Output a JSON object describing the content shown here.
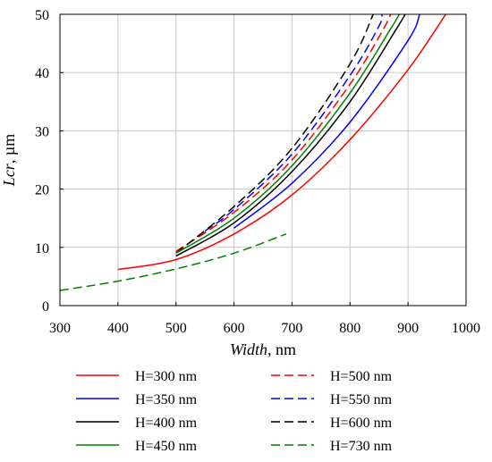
{
  "chart_data": {
    "type": "line",
    "xlabel": {
      "italic": "Width",
      "rest": ", nm"
    },
    "ylabel": {
      "italic": "Lcr",
      "rest": ", µm"
    },
    "xlim": [
      300,
      1000
    ],
    "ylim": [
      0,
      50
    ],
    "xticks": [
      "300",
      "400",
      "500",
      "600",
      "700",
      "800",
      "900",
      "1000"
    ],
    "yticks": [
      "0",
      "10",
      "20",
      "30",
      "40",
      "50"
    ],
    "grid": true,
    "legend_position": "bottom",
    "series": [
      {
        "name": "H=300 nm",
        "color": "#ff0000",
        "dash": false,
        "points": [
          [
            400,
            6.2
          ],
          [
            500,
            7.9
          ],
          [
            600,
            12.3
          ],
          [
            700,
            19.0
          ],
          [
            800,
            28.5
          ],
          [
            900,
            40.5
          ],
          [
            965,
            50
          ]
        ]
      },
      {
        "name": "H=500 nm",
        "color": "#ff0000",
        "dash": true,
        "points": [
          [
            500,
            9.3
          ],
          [
            600,
            16.0
          ],
          [
            700,
            25.0
          ],
          [
            800,
            38.0
          ],
          [
            855,
            47.0
          ],
          [
            870,
            50
          ]
        ]
      },
      {
        "name": "H=350 nm",
        "color": "#0000ff",
        "dash": false,
        "points": [
          [
            600,
            13.3
          ],
          [
            700,
            21.0
          ],
          [
            800,
            31.5
          ],
          [
            900,
            45.5
          ],
          [
            920,
            50
          ]
        ]
      },
      {
        "name": "H=550 nm",
        "color": "#0000ff",
        "dash": true,
        "points": [
          [
            550,
            12.8
          ],
          [
            600,
            16.5
          ],
          [
            700,
            26.0
          ],
          [
            800,
            39.5
          ],
          [
            850,
            48.0
          ],
          [
            855,
            50
          ]
        ]
      },
      {
        "name": "H=400 nm",
        "color": "#000000",
        "dash": false,
        "points": [
          [
            500,
            8.5
          ],
          [
            600,
            14.2
          ],
          [
            700,
            23.0
          ],
          [
            800,
            35.0
          ],
          [
            880,
            47.5
          ],
          [
            895,
            50
          ]
        ]
      },
      {
        "name": "H=600 nm",
        "color": "#000000",
        "dash": true,
        "points": [
          [
            500,
            9.0
          ],
          [
            600,
            17.0
          ],
          [
            700,
            27.0
          ],
          [
            800,
            41.5
          ],
          [
            840,
            50
          ]
        ]
      },
      {
        "name": "H=450 nm",
        "color": "#008000",
        "dash": false,
        "points": [
          [
            500,
            9.0
          ],
          [
            600,
            15.0
          ],
          [
            700,
            24.0
          ],
          [
            800,
            36.5
          ],
          [
            870,
            47.5
          ],
          [
            885,
            50
          ]
        ]
      },
      {
        "name": "H=730 nm",
        "color": "#008000",
        "dash": true,
        "points": [
          [
            300,
            2.6
          ],
          [
            400,
            4.2
          ],
          [
            500,
            6.3
          ],
          [
            600,
            9.0
          ],
          [
            690,
            12.3
          ]
        ]
      }
    ]
  }
}
